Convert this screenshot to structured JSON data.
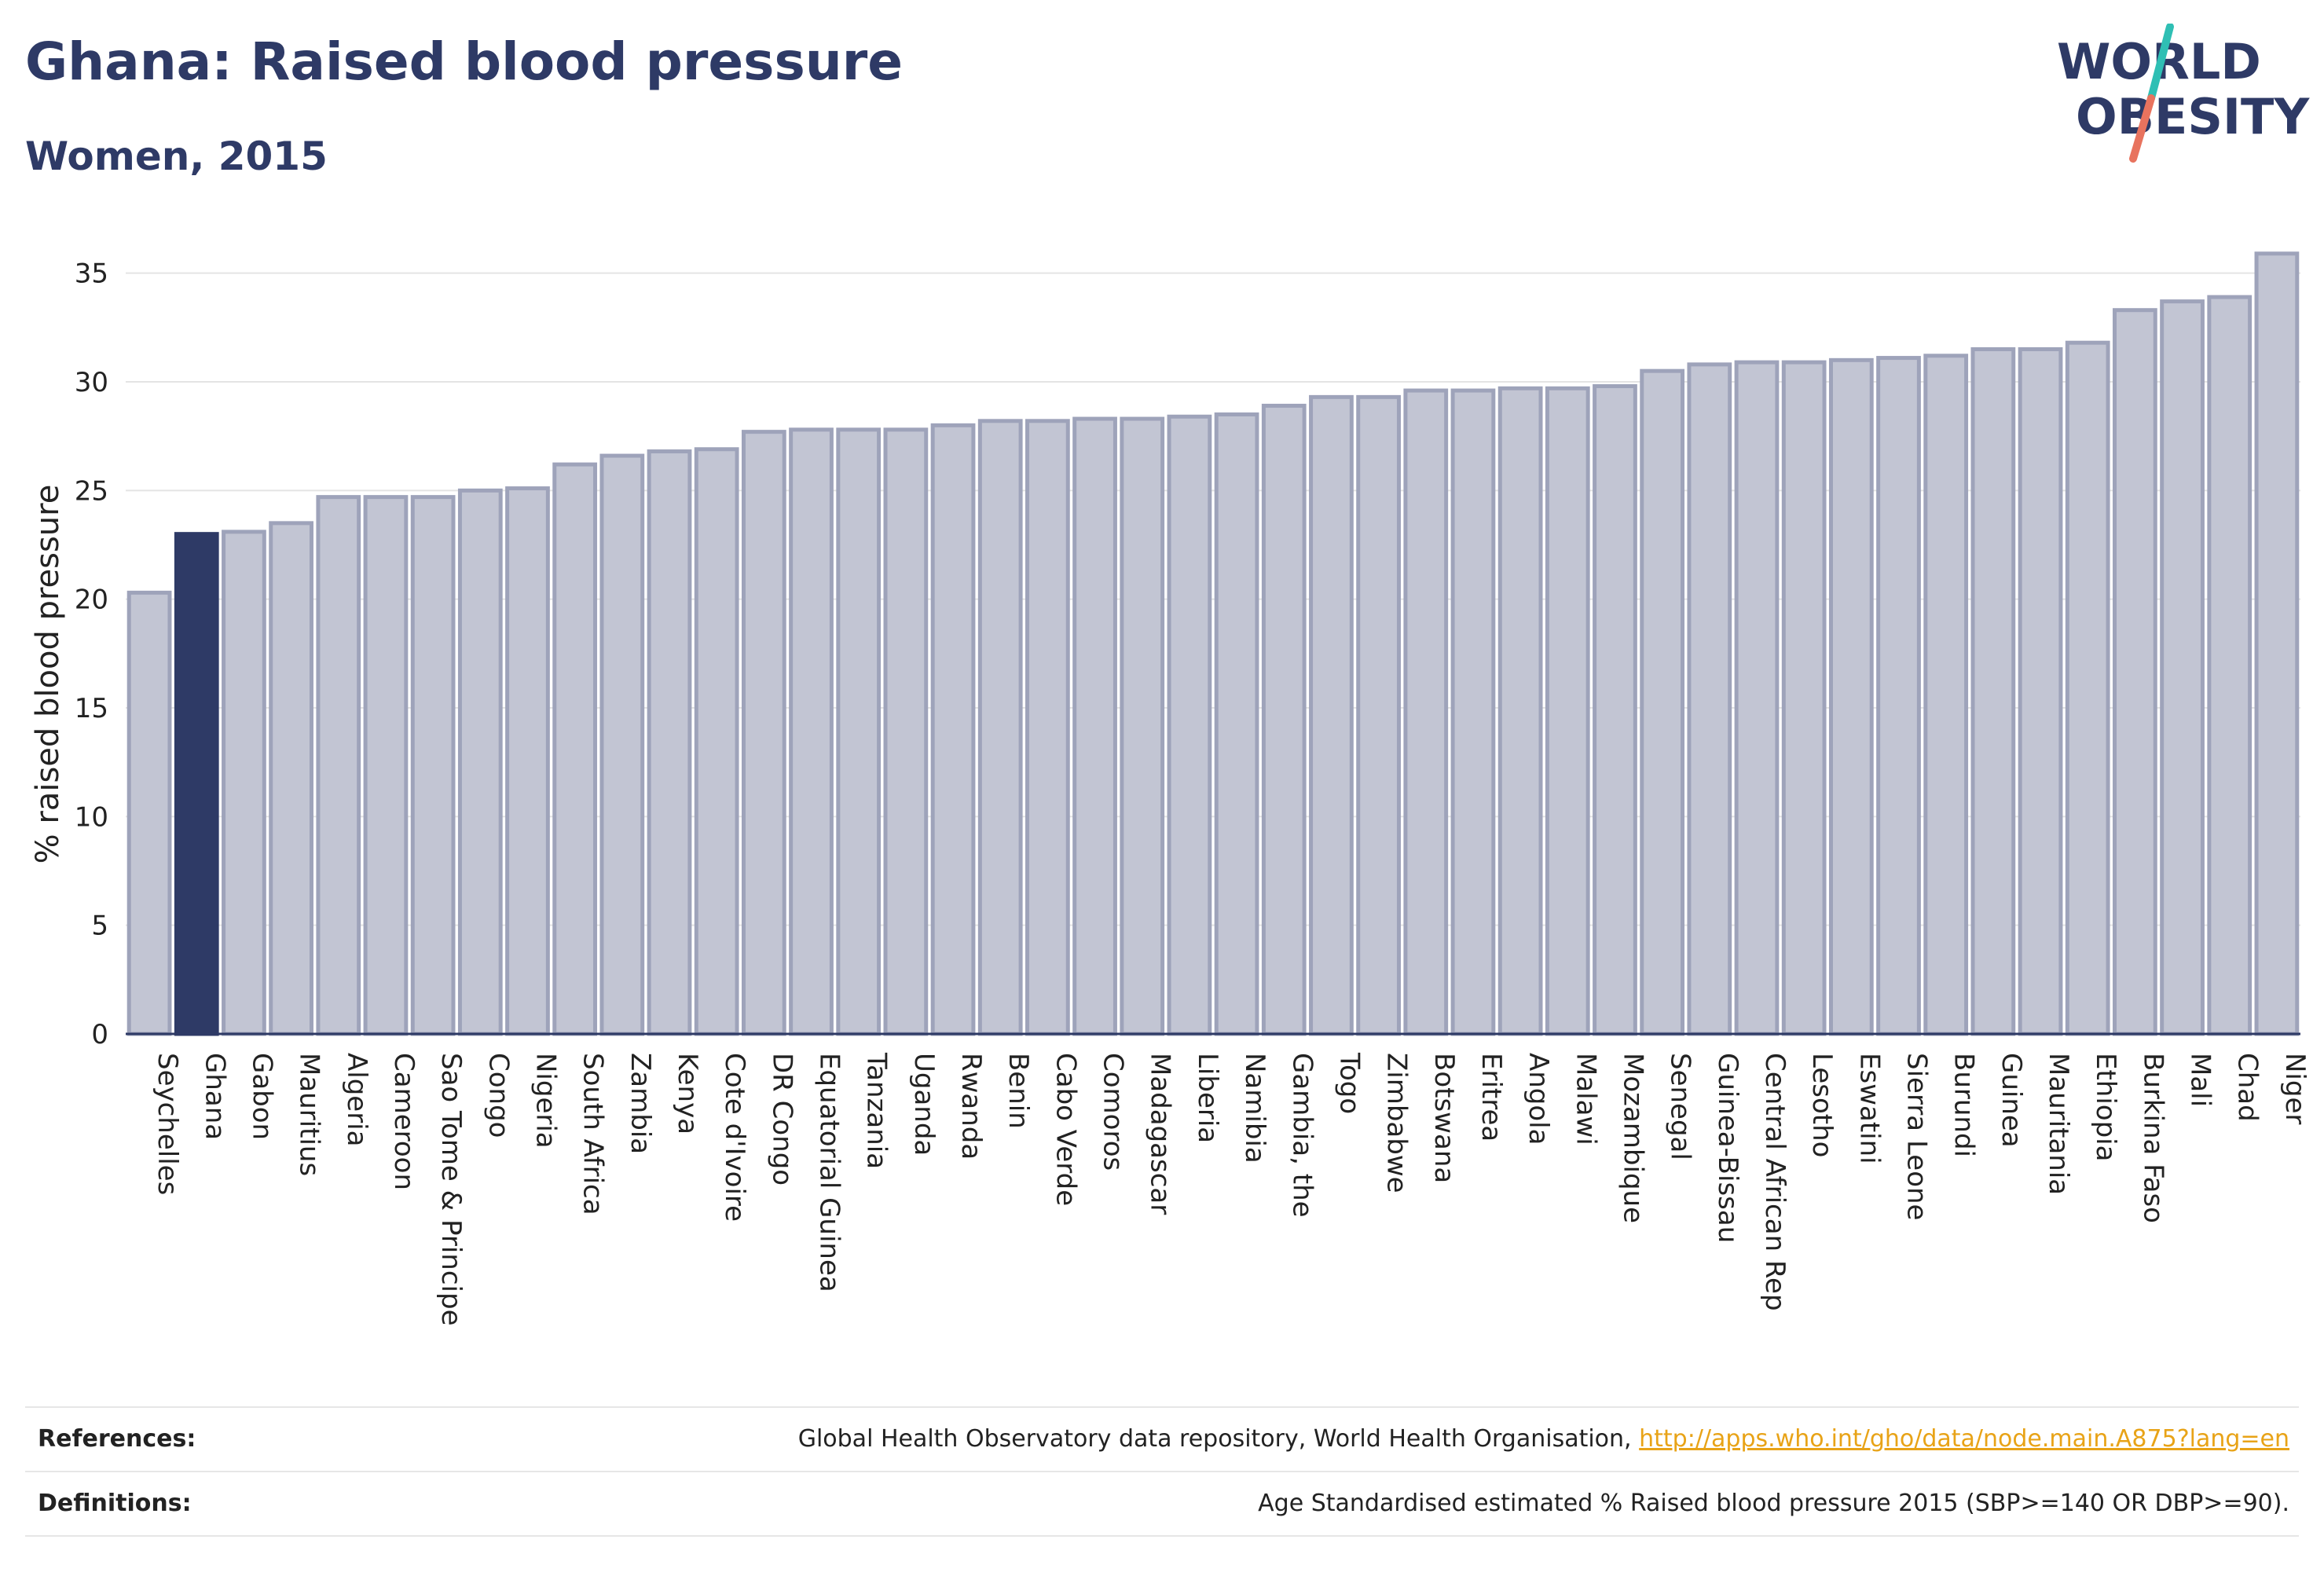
{
  "header": {
    "title": "Ghana: Raised blood pressure",
    "subtitle": "Women, 2015"
  },
  "logo": {
    "line1": "WORLD",
    "line2": "OBESITY"
  },
  "footer": {
    "references_label": "References:",
    "references_text": "Global Health Observatory data repository, World Health Organisation,",
    "references_link": "http://apps.who.int/gho/data/node.main.A875?lang=en",
    "definitions_label": "Definitions:",
    "definitions_text": "Age Standardised estimated % Raised blood pressure 2015 (SBP>=140 OR DBP>=90)."
  },
  "colors": {
    "highlight": "#2e3a66",
    "bar_fill": "#c2c5d3",
    "bar_stroke": "#9ea3ba",
    "logo_teal": "#2fbfb4",
    "logo_coral": "#e8735e"
  },
  "chart_data": {
    "type": "bar",
    "title": "Ghana: Raised blood pressure",
    "subtitle": "Women, 2015",
    "xlabel": "",
    "ylabel": "% raised blood pressure",
    "ylim": [
      0,
      36
    ],
    "yticks": [
      0,
      5,
      10,
      15,
      20,
      25,
      30,
      35
    ],
    "grid": true,
    "highlight": "Ghana",
    "categories": [
      "Seychelles",
      "Ghana",
      "Gabon",
      "Mauritius",
      "Algeria",
      "Cameroon",
      "Sao Tome & Principe",
      "Congo",
      "Nigeria",
      "South Africa",
      "Zambia",
      "Kenya",
      "Cote d'Ivoire",
      "DR Congo",
      "Equatorial Guinea",
      "Tanzania",
      "Uganda",
      "Rwanda",
      "Benin",
      "Cabo Verde",
      "Comoros",
      "Madagascar",
      "Liberia",
      "Namibia",
      "Gambia, the",
      "Togo",
      "Zimbabwe",
      "Botswana",
      "Eritrea",
      "Angola",
      "Malawi",
      "Mozambique",
      "Senegal",
      "Guinea-Bissau",
      "Central African Rep",
      "Lesotho",
      "Eswatini",
      "Sierra Leone",
      "Burundi",
      "Guinea",
      "Mauritania",
      "Ethiopia",
      "Burkina Faso",
      "Mali",
      "Chad",
      "Niger"
    ],
    "values": [
      20.3,
      23.0,
      23.1,
      23.5,
      24.7,
      24.7,
      24.7,
      25.0,
      25.1,
      26.2,
      26.6,
      26.8,
      26.9,
      27.7,
      27.8,
      27.8,
      27.8,
      28.0,
      28.2,
      28.2,
      28.3,
      28.3,
      28.4,
      28.5,
      28.9,
      29.3,
      29.3,
      29.6,
      29.6,
      29.7,
      29.7,
      29.8,
      30.5,
      30.8,
      30.9,
      30.9,
      31.0,
      31.1,
      31.2,
      31.5,
      31.5,
      31.8,
      33.3,
      33.7,
      33.9,
      35.9
    ]
  }
}
